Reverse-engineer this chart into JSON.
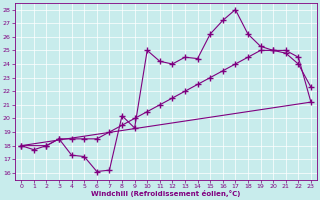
{
  "xlabel": "Windchill (Refroidissement éolien,°C)",
  "xlim": [
    -0.5,
    23.5
  ],
  "ylim": [
    15.5,
    28.5
  ],
  "xticks": [
    0,
    1,
    2,
    3,
    4,
    5,
    6,
    7,
    8,
    9,
    10,
    11,
    12,
    13,
    14,
    15,
    16,
    17,
    18,
    19,
    20,
    21,
    22,
    23
  ],
  "yticks": [
    16,
    17,
    18,
    19,
    20,
    21,
    22,
    23,
    24,
    25,
    26,
    27,
    28
  ],
  "bg_color": "#c8ecec",
  "line_color": "#800080",
  "grid_color": "#ffffff",
  "line1_x": [
    0,
    1,
    2,
    3,
    4,
    5,
    6,
    7,
    8,
    9,
    10,
    11,
    12,
    13,
    14,
    15,
    16,
    17,
    18,
    19,
    20,
    21,
    22,
    23
  ],
  "line1_y": [
    18.0,
    17.7,
    18.0,
    18.5,
    17.3,
    17.2,
    16.1,
    16.2,
    20.2,
    19.3,
    25.0,
    24.2,
    24.0,
    24.5,
    24.4,
    26.2,
    27.2,
    28.0,
    26.2,
    25.3,
    25.0,
    24.8,
    24.0,
    22.3
  ],
  "line2_x": [
    0,
    2,
    3,
    4,
    5,
    6,
    7,
    8,
    9,
    10,
    11,
    12,
    13,
    14,
    15,
    16,
    17,
    18,
    19,
    20,
    21,
    22,
    23
  ],
  "line2_y": [
    18.0,
    18.0,
    18.5,
    18.5,
    18.5,
    18.5,
    19.0,
    19.5,
    20.0,
    20.5,
    21.0,
    21.5,
    22.0,
    22.5,
    23.0,
    23.5,
    24.0,
    24.5,
    25.0,
    25.0,
    25.0,
    24.5,
    21.2
  ],
  "line3_x": [
    0,
    23
  ],
  "line3_y": [
    18.0,
    21.2
  ]
}
